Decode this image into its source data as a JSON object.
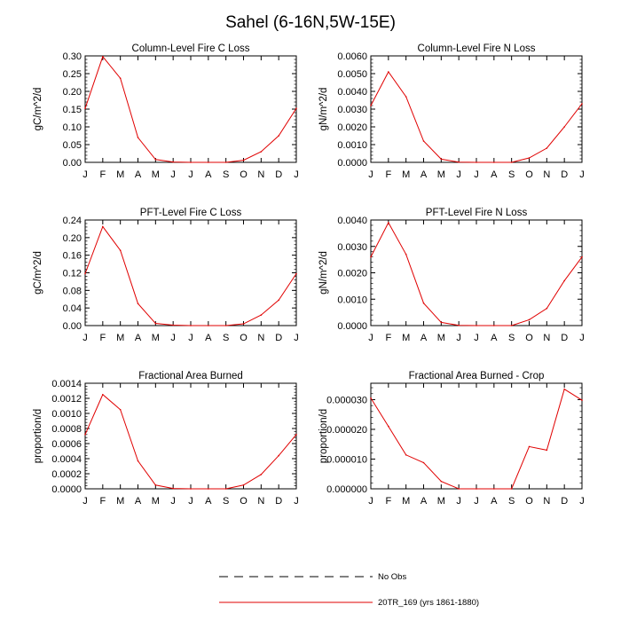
{
  "figure": {
    "title": "Sahel (6-16N,5W-15E)"
  },
  "chart_data": [
    {
      "type": "line",
      "title": "Column-Level Fire C Loss",
      "xlabel": "",
      "ylabel": "gC/m^2/d",
      "categories": [
        "J",
        "F",
        "M",
        "A",
        "M",
        "J",
        "J",
        "A",
        "S",
        "O",
        "N",
        "D",
        "J"
      ],
      "ylim": [
        0,
        0.3
      ],
      "yticks": [
        0.0,
        0.05,
        0.1,
        0.15,
        0.2,
        0.25,
        0.3
      ],
      "ytick_labels": [
        "0.00",
        "0.05",
        "0.10",
        "0.15",
        "0.20",
        "0.25",
        "0.30"
      ],
      "grid": false,
      "series": [
        {
          "name": "20TR_169 (yrs 1861-1880)",
          "color": "#e00000",
          "values": [
            0.152,
            0.298,
            0.237,
            0.07,
            0.008,
            0.001,
            0.0,
            0.0,
            0.0,
            0.006,
            0.03,
            0.075,
            0.152
          ]
        }
      ]
    },
    {
      "type": "line",
      "title": "Column-Level Fire N Loss",
      "xlabel": "",
      "ylabel": "gN/m^2/d",
      "categories": [
        "J",
        "F",
        "M",
        "A",
        "M",
        "J",
        "J",
        "A",
        "S",
        "O",
        "N",
        "D",
        "J"
      ],
      "ylim": [
        0,
        0.006
      ],
      "yticks": [
        0.0,
        0.001,
        0.002,
        0.003,
        0.004,
        0.005,
        0.006
      ],
      "ytick_labels": [
        "0.0000",
        "0.0010",
        "0.0020",
        "0.0030",
        "0.0040",
        "0.0050",
        "0.0060"
      ],
      "grid": false,
      "series": [
        {
          "name": "20TR_169 (yrs 1861-1880)",
          "color": "#e00000",
          "values": [
            0.0032,
            0.0051,
            0.0037,
            0.0012,
            0.00018,
            1e-05,
            0.0,
            0.0,
            0.0,
            0.00025,
            0.0008,
            0.002,
            0.0033
          ]
        }
      ]
    },
    {
      "type": "line",
      "title": "PFT-Level Fire C Loss",
      "xlabel": "",
      "ylabel": "gC/m^2/d",
      "categories": [
        "J",
        "F",
        "M",
        "A",
        "M",
        "J",
        "J",
        "A",
        "S",
        "O",
        "N",
        "D",
        "J"
      ],
      "ylim": [
        0,
        0.24
      ],
      "yticks": [
        0.0,
        0.04,
        0.08,
        0.12,
        0.16,
        0.2,
        0.24
      ],
      "ytick_labels": [
        "0.00",
        "0.04",
        "0.08",
        "0.12",
        "0.16",
        "0.20",
        "0.24"
      ],
      "grid": false,
      "series": [
        {
          "name": "20TR_169 (yrs 1861-1880)",
          "color": "#e00000",
          "values": [
            0.118,
            0.225,
            0.171,
            0.05,
            0.005,
            0.001,
            0.0,
            0.0,
            0.0,
            0.004,
            0.024,
            0.058,
            0.118
          ]
        }
      ]
    },
    {
      "type": "line",
      "title": "PFT-Level Fire N Loss",
      "xlabel": "",
      "ylabel": "gN/m^2/d",
      "categories": [
        "J",
        "F",
        "M",
        "A",
        "M",
        "J",
        "J",
        "A",
        "S",
        "O",
        "N",
        "D",
        "J"
      ],
      "ylim": [
        0,
        0.004
      ],
      "yticks": [
        0.0,
        0.001,
        0.002,
        0.003,
        0.004
      ],
      "ytick_labels": [
        "0.0000",
        "0.0010",
        "0.0020",
        "0.0030",
        "0.0040"
      ],
      "grid": false,
      "series": [
        {
          "name": "20TR_169 (yrs 1861-1880)",
          "color": "#e00000",
          "values": [
            0.0026,
            0.0039,
            0.0027,
            0.00085,
            0.00012,
            1e-05,
            0.0,
            0.0,
            0.0,
            0.00022,
            0.00065,
            0.0017,
            0.0026
          ]
        }
      ]
    },
    {
      "type": "line",
      "title": "Fractional Area Burned",
      "xlabel": "",
      "ylabel": "proportion/d",
      "categories": [
        "J",
        "F",
        "M",
        "A",
        "M",
        "J",
        "J",
        "A",
        "S",
        "O",
        "N",
        "D",
        "J"
      ],
      "ylim": [
        0,
        0.0014
      ],
      "yticks": [
        0.0,
        0.0002,
        0.0004,
        0.0006,
        0.0008,
        0.001,
        0.0012,
        0.0014
      ],
      "ytick_labels": [
        "0.0000",
        "0.0002",
        "0.0004",
        "0.0006",
        "0.0008",
        "0.0010",
        "0.0012",
        "0.0014"
      ],
      "grid": false,
      "series": [
        {
          "name": "20TR_169 (yrs 1861-1880)",
          "color": "#e00000",
          "values": [
            0.00072,
            0.00125,
            0.00105,
            0.00037,
            5e-05,
            5e-06,
            0.0,
            0.0,
            0.0,
            5e-05,
            0.00019,
            0.00044,
            0.00072
          ]
        }
      ]
    },
    {
      "type": "line",
      "title": "Fractional Area Burned - Crop",
      "xlabel": "",
      "ylabel": "proportion/d",
      "categories": [
        "J",
        "F",
        "M",
        "A",
        "M",
        "J",
        "J",
        "A",
        "S",
        "O",
        "N",
        "D",
        "J"
      ],
      "ylim": [
        0,
        3.55e-05
      ],
      "yticks": [
        0.0,
        1e-05,
        2e-05,
        3e-05
      ],
      "ytick_labels": [
        "0.000000",
        "0.000010",
        "0.000020",
        "0.000030"
      ],
      "grid": false,
      "series": [
        {
          "name": "20TR_169 (yrs 1861-1880)",
          "color": "#e00000",
          "values": [
            3.05e-05,
            2.1e-05,
            1.14e-05,
            8.8e-06,
            2.5e-06,
            0.0,
            0.0,
            0.0,
            0.0,
            1.42e-05,
            1.3e-05,
            3.35e-05,
            2.98e-05
          ]
        }
      ]
    }
  ],
  "legend": {
    "placement": "bottom-center",
    "items": [
      {
        "label": "No Obs",
        "style": "dashed",
        "color": "#000000"
      },
      {
        "label": "20TR_169 (yrs 1861-1880)",
        "style": "solid",
        "color": "#e00000"
      }
    ]
  }
}
